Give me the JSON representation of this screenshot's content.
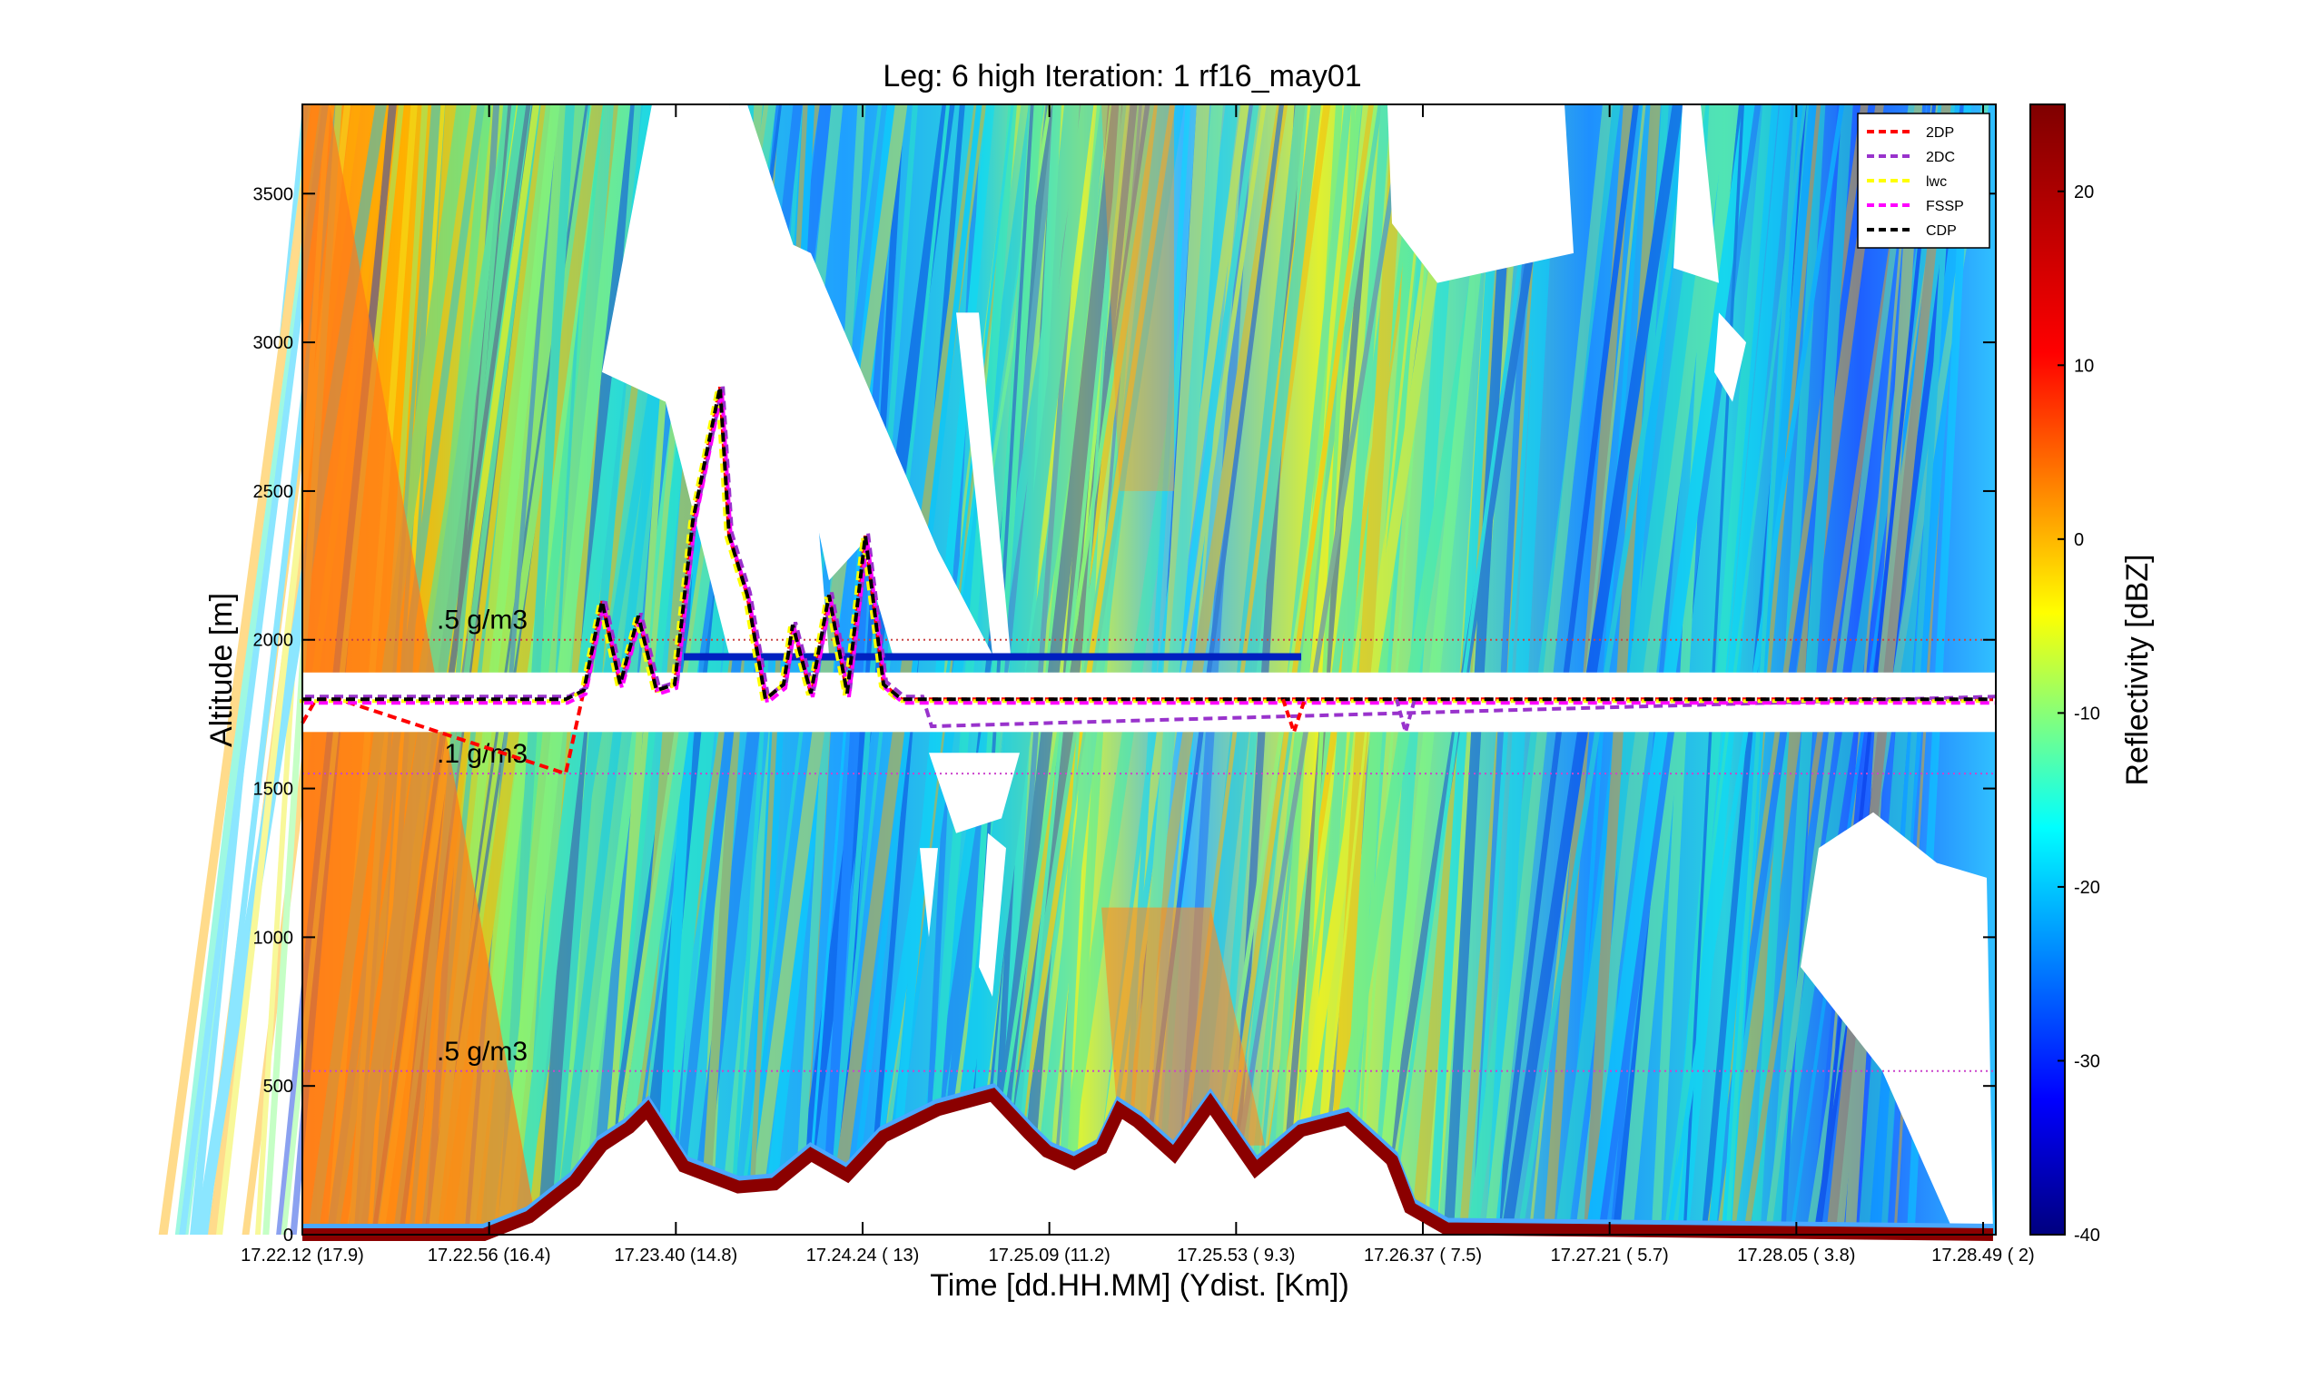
{
  "chart_data": {
    "type": "heatmap",
    "title": "Leg: 6 high Iteration: 1  rf16_may01",
    "xlabel": "Time [dd.HH.MM]     (Ydist. [Km])",
    "ylabel": "Altitude [m]",
    "colorbar_label": "Reflectivity [dBZ]",
    "ylim": [
      0,
      3800
    ],
    "y_ticks": [
      0,
      500,
      1000,
      1500,
      2000,
      2500,
      3000,
      3500
    ],
    "x_ticks": [
      {
        "time": "17.22.12",
        "dist": "(17.9)"
      },
      {
        "time": "17.22.56",
        "dist": "(16.4)"
      },
      {
        "time": "17.23.40",
        "dist": "(14.8)"
      },
      {
        "time": "17.24.24",
        "dist": "(  13)"
      },
      {
        "time": "17.25.09",
        "dist": "(11.2)"
      },
      {
        "time": "17.25.53",
        "dist": "( 9.3)"
      },
      {
        "time": "17.26.37",
        "dist": "( 7.5)"
      },
      {
        "time": "17.27.21",
        "dist": "( 5.7)"
      },
      {
        "time": "17.28.05",
        "dist": "( 3.8)"
      },
      {
        "time": "17.28.49",
        "dist": "(  2)"
      }
    ],
    "colorbar_range": [
      -40,
      25
    ],
    "colorbar_ticks": [
      -40,
      -30,
      -20,
      -10,
      0,
      10,
      20
    ],
    "grid": false,
    "legend_position": "top-right",
    "legend": [
      {
        "name": "2DP",
        "color": "#ff0000"
      },
      {
        "name": "2DC",
        "color": "#9933cc"
      },
      {
        "name": "lwc",
        "color": "#ffff00"
      },
      {
        "name": "FSSP",
        "color": "#ff00ff"
      },
      {
        "name": "CDP",
        "color": "#000000"
      }
    ],
    "reference_lines": [
      {
        "label": ".5 g/m3",
        "y": 2000,
        "color": "#cc4444"
      },
      {
        "label": ".1 g/m3",
        "y": 1550,
        "color": "#cc44cc"
      },
      {
        "label": ".5 g/m3",
        "y": 550,
        "color": "#cc44cc"
      }
    ],
    "flight_altitude": 1800,
    "profile_peak_altitude": 2850,
    "surface_echo_peak_altitude": 470
  }
}
